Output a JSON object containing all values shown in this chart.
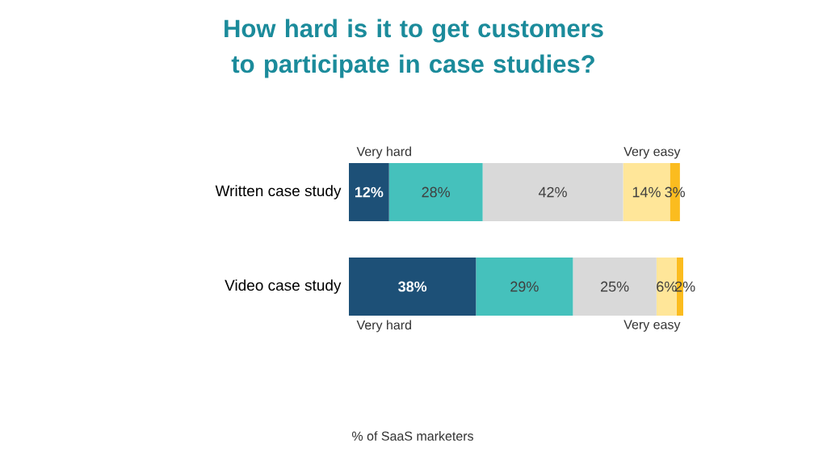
{
  "chart_data": {
    "type": "bar",
    "orientation": "horizontal",
    "stacked": true,
    "title": "How hard is it to get customers to participate in case studies?",
    "categories": [
      "Written case study",
      "Video case study"
    ],
    "xlim": [
      0,
      100
    ],
    "tick_labels": "y",
    "series": [
      {
        "color": "#1d5077",
        "values": [
          12,
          38
        ],
        "value_labels": [
          "12%",
          "38%"
        ]
      },
      {
        "color": "#45c1bc",
        "values": [
          28,
          29
        ],
        "value_labels": [
          "28%",
          "29%"
        ]
      },
      {
        "color": "#d9d9d9",
        "values": [
          42,
          25
        ],
        "value_labels": [
          "42%",
          "25%"
        ]
      },
      {
        "color": "#ffe699",
        "values": [
          14,
          6
        ],
        "value_labels": [
          "14%",
          "6%"
        ]
      },
      {
        "color": "#fbbc1f",
        "values": [
          3,
          2
        ],
        "value_labels": [
          "3%",
          "2%"
        ]
      }
    ],
    "annotations": [
      "Very hard",
      "Very easy",
      "Very hard",
      "Very easy",
      "% of SaaS marketers"
    ]
  }
}
